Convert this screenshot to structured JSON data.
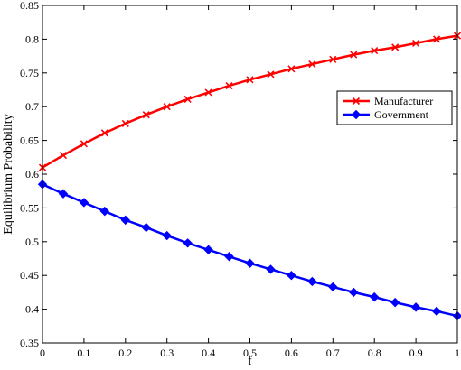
{
  "chart_data": {
    "type": "line",
    "title": "",
    "xlabel": "f",
    "ylabel": "Equilibrium  Probability",
    "xlim": [
      0,
      1
    ],
    "ylim": [
      0.35,
      0.85
    ],
    "x_ticks": [
      "0",
      "0.1",
      "0.2",
      "0.3",
      "0.4",
      "0.5",
      "0.6",
      "0.7",
      "0.8",
      "0.9",
      "1"
    ],
    "y_ticks": [
      "0.35",
      "0.4",
      "0.45",
      "0.5",
      "0.55",
      "0.6",
      "0.65",
      "0.7",
      "0.75",
      "0.8",
      "0.85"
    ],
    "grid": false,
    "legend_position": "right",
    "x": [
      0,
      0.05,
      0.1,
      0.15,
      0.2,
      0.25,
      0.3,
      0.35,
      0.4,
      0.45,
      0.5,
      0.55,
      0.6,
      0.65,
      0.7,
      0.75,
      0.8,
      0.85,
      0.9,
      0.95,
      1
    ],
    "series": [
      {
        "name": "Manufacturer",
        "color": "#ff0000",
        "marker": "x",
        "values": [
          0.61,
          0.628,
          0.645,
          0.661,
          0.675,
          0.688,
          0.7,
          0.711,
          0.721,
          0.731,
          0.74,
          0.748,
          0.756,
          0.763,
          0.77,
          0.777,
          0.783,
          0.788,
          0.794,
          0.8,
          0.805
        ]
      },
      {
        "name": "Government",
        "color": "#0000ff",
        "marker": "diamond",
        "values": [
          0.585,
          0.571,
          0.558,
          0.545,
          0.532,
          0.521,
          0.509,
          0.498,
          0.488,
          0.478,
          0.468,
          0.459,
          0.45,
          0.441,
          0.433,
          0.425,
          0.418,
          0.41,
          0.403,
          0.397,
          0.39
        ]
      }
    ]
  }
}
